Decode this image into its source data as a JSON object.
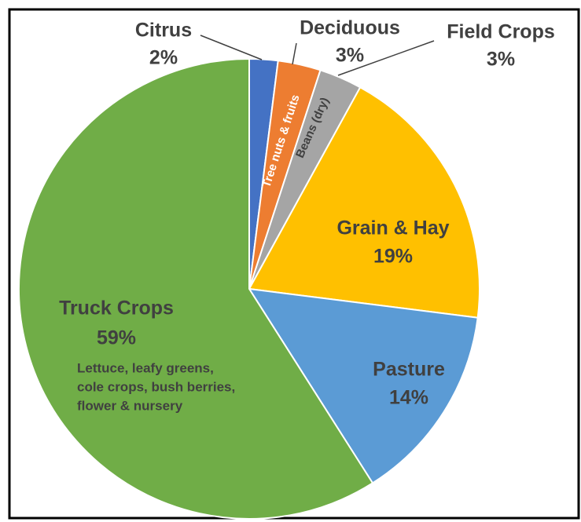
{
  "chart_data": {
    "type": "pie",
    "categories": [
      "Citrus",
      "Deciduous",
      "Field Crops",
      "Grain & Hay",
      "Pasture",
      "Truck Crops"
    ],
    "values": [
      2,
      3,
      3,
      19,
      14,
      59
    ],
    "value_labels": [
      "2%",
      "3%",
      "3%",
      "19%",
      "14%",
      "59%"
    ],
    "colors": [
      "#4472c4",
      "#ed7d31",
      "#a5a5a5",
      "#ffc000",
      "#5b9bd5",
      "#70ad47"
    ],
    "annotations": [
      "Tree nuts & fruits",
      "Beans (dry)",
      "Lettuce, leafy greens,",
      "cole crops, bush berries,",
      "flower & nursery"
    ]
  }
}
